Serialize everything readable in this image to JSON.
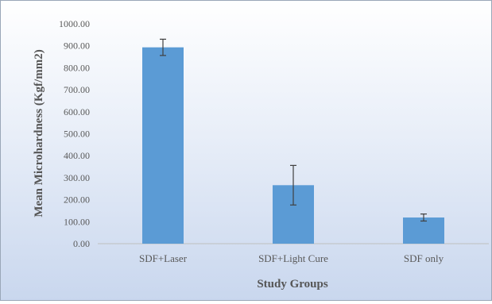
{
  "chart_data": {
    "type": "bar",
    "categories": [
      "SDF+Laser",
      "SDF+Light Cure",
      "SDF only"
    ],
    "values": [
      893,
      266,
      119
    ],
    "error": [
      37,
      90,
      16
    ],
    "xlabel": "Study Groups",
    "ylabel": "Mean Microhardness (Kgf/mm2)",
    "ylim": [
      0,
      1000
    ],
    "yticks": [
      "0.00",
      "100.00",
      "200.00",
      "300.00",
      "400.00",
      "500.00",
      "600.00",
      "700.00",
      "800.00",
      "900.00",
      "1000.00"
    ],
    "grid": false,
    "bar_color": "#5b9bd5",
    "error_bar_color": "#404040"
  }
}
